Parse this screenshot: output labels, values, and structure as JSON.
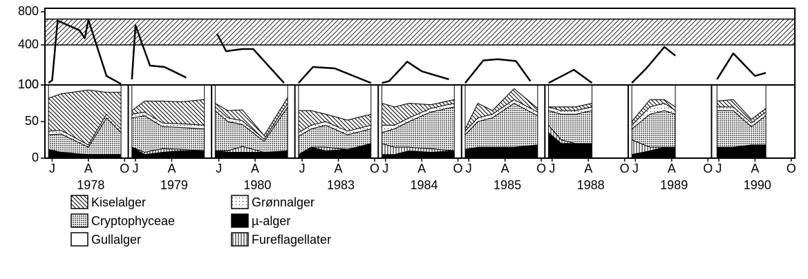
{
  "chart_data": [
    {
      "type": "line",
      "scale": "sqrt",
      "ylim": [
        100,
        850
      ],
      "yticks": [
        100,
        400,
        800
      ],
      "band": [
        400,
        700
      ],
      "xlim": [
        5.6,
        10.2
      ],
      "seasons": [
        {
          "x": [
            5.8,
            6.0,
            6.3,
            7.5,
            7.8,
            8.0,
            9.0,
            9.8
          ],
          "values": [
            110,
            125,
            680,
            560,
            470,
            690,
            150,
            105
          ]
        },
        {
          "x": [
            5.8,
            6.0,
            6.8,
            7.6,
            8.8
          ],
          "values": [
            130,
            620,
            220,
            210,
            140
          ]
        },
        {
          "x": [
            5.9,
            6.4,
            7.3,
            7.9,
            9.6
          ],
          "values": [
            520,
            340,
            360,
            360,
            110
          ]
        },
        {
          "x": [
            5.8,
            6.6,
            7.8,
            9.8
          ],
          "values": [
            110,
            210,
            200,
            110
          ]
        },
        {
          "x": [
            5.8,
            6.2,
            7.2,
            8.0,
            9.5
          ],
          "values": [
            110,
            120,
            250,
            180,
            130
          ]
        },
        {
          "x": [
            5.8,
            6.8,
            7.6,
            8.6,
            9.4
          ],
          "values": [
            110,
            260,
            270,
            255,
            120
          ]
        },
        {
          "x": [
            5.8,
            7.2,
            8.2
          ],
          "values": [
            110,
            190,
            110
          ]
        },
        {
          "x": [
            5.8,
            6.6,
            7.6,
            8.2
          ],
          "values": [
            110,
            200,
            380,
            300
          ]
        },
        {
          "x": [
            5.9,
            6.8,
            8.0,
            8.6
          ],
          "values": [
            130,
            320,
            150,
            170
          ]
        }
      ]
    },
    {
      "type": "stacked-area",
      "ylim": [
        0,
        100
      ],
      "yticks": [
        0,
        50,
        100
      ],
      "xlim": [
        5.6,
        10.2
      ],
      "series": [
        {
          "name": "µ-alger",
          "pattern": "solid"
        },
        {
          "name": "Fureflagellater",
          "pattern": "vertical"
        },
        {
          "name": "Cryptophyceae",
          "pattern": "dense-dots"
        },
        {
          "name": "Grønnalger",
          "pattern": "dots"
        },
        {
          "name": "Kiselalger",
          "pattern": "diagonal"
        },
        {
          "name": "Gullalger",
          "pattern": "none"
        }
      ],
      "seasons": [
        {
          "label": "1978",
          "xticks": [
            {
              "value": 6,
              "label": "J"
            },
            {
              "value": 8,
              "label": "A"
            },
            {
              "value": 10,
              "label": "O"
            }
          ],
          "x": [
            5.8,
            6.5,
            8.0,
            9.0,
            9.8
          ],
          "series": [
            {
              "values": [
                12,
                8,
                5,
                5,
                5
              ]
            },
            {
              "values": [
                0,
                0,
                0,
                0,
                0
              ]
            },
            {
              "values": [
                20,
                25,
                10,
                50,
                30
              ]
            },
            {
              "values": [
                5,
                5,
                3,
                5,
                5
              ]
            },
            {
              "values": [
                45,
                50,
                75,
                30,
                50
              ]
            },
            {
              "values": [
                18,
                12,
                7,
                10,
                10
              ]
            }
          ]
        },
        {
          "label": "1979",
          "xticks": [
            {
              "value": 6,
              "label": "J"
            },
            {
              "value": 8,
              "label": "A"
            }
          ],
          "x": [
            5.8,
            6.5,
            7.5,
            8.5,
            9.8
          ],
          "series": [
            {
              "values": [
                15,
                5,
                8,
                10,
                10
              ]
            },
            {
              "values": [
                0,
                3,
                5,
                2,
                0
              ]
            },
            {
              "values": [
                40,
                50,
                30,
                30,
                30
              ]
            },
            {
              "values": [
                5,
                5,
                5,
                5,
                5
              ]
            },
            {
              "values": [
                5,
                15,
                30,
                30,
                35
              ]
            },
            {
              "values": [
                35,
                22,
                22,
                23,
                20
              ]
            }
          ]
        },
        {
          "label": "1980",
          "xticks": [
            {
              "value": 6,
              "label": "J"
            },
            {
              "value": 8,
              "label": "A"
            }
          ],
          "x": [
            5.8,
            6.5,
            7.3,
            8.5,
            9.8
          ],
          "series": [
            {
              "values": [
                10,
                8,
                8,
                8,
                10
              ]
            },
            {
              "values": [
                0,
                2,
                8,
                0,
                0
              ]
            },
            {
              "values": [
                55,
                40,
                30,
                15,
                60
              ]
            },
            {
              "values": [
                5,
                5,
                5,
                3,
                5
              ]
            },
            {
              "values": [
                5,
                10,
                15,
                5,
                8
              ]
            },
            {
              "values": [
                25,
                35,
                34,
                69,
                17
              ]
            }
          ]
        },
        {
          "label": "1983",
          "xticks": [
            {
              "value": 6,
              "label": "J"
            },
            {
              "value": 8,
              "label": "A"
            },
            {
              "value": 10,
              "label": "O"
            }
          ],
          "x": [
            5.8,
            6.5,
            7.3,
            8.5,
            9.8
          ],
          "series": [
            {
              "values": [
                5,
                15,
                10,
                12,
                20
              ]
            },
            {
              "values": [
                0,
                0,
                5,
                0,
                0
              ]
            },
            {
              "values": [
                25,
                25,
                30,
                20,
                20
              ]
            },
            {
              "values": [
                5,
                5,
                5,
                5,
                5
              ]
            },
            {
              "values": [
                30,
                20,
                10,
                15,
                15
              ]
            },
            {
              "values": [
                35,
                35,
                40,
                48,
                40
              ]
            }
          ]
        },
        {
          "label": "1984",
          "xticks": [
            {
              "value": 6,
              "label": "J"
            },
            {
              "value": 8,
              "label": "A"
            },
            {
              "value": 10,
              "label": "O"
            }
          ],
          "x": [
            5.8,
            6.5,
            7.3,
            8.5,
            9.8
          ],
          "series": [
            {
              "values": [
                5,
                5,
                10,
                8,
                10
              ]
            },
            {
              "values": [
                15,
                10,
                5,
                5,
                0
              ]
            },
            {
              "values": [
                15,
                25,
                35,
                50,
                60
              ]
            },
            {
              "values": [
                10,
                5,
                5,
                5,
                5
              ]
            },
            {
              "values": [
                30,
                25,
                20,
                5,
                5
              ]
            },
            {
              "values": [
                25,
                30,
                25,
                27,
                20
              ]
            }
          ]
        },
        {
          "label": "1985",
          "xticks": [
            {
              "value": 6,
              "label": "J"
            },
            {
              "value": 8,
              "label": "A"
            },
            {
              "value": 10,
              "label": "O"
            }
          ],
          "x": [
            5.8,
            6.5,
            7.3,
            8.5,
            9.8
          ],
          "series": [
            {
              "values": [
                12,
                15,
                15,
                15,
                18
              ]
            },
            {
              "values": [
                0,
                0,
                0,
                0,
                0
              ]
            },
            {
              "values": [
                20,
                35,
                40,
                60,
                40
              ]
            },
            {
              "values": [
                5,
                5,
                5,
                5,
                5
              ]
            },
            {
              "values": [
                3,
                20,
                5,
                15,
                5
              ]
            },
            {
              "values": [
                60,
                25,
                35,
                5,
                32
              ]
            }
          ]
        },
        {
          "label": "1988",
          "xticks": [
            {
              "value": 6,
              "label": "J"
            },
            {
              "value": 8,
              "label": "A"
            },
            {
              "value": 10,
              "label": "O"
            }
          ],
          "x": [
            5.8,
            6.5,
            7.3,
            8.2
          ],
          "series": [
            {
              "values": [
                35,
                20,
                20,
                20
              ]
            },
            {
              "values": [
                10,
                5,
                0,
                0
              ]
            },
            {
              "values": [
                20,
                35,
                40,
                45
              ]
            },
            {
              "values": [
                5,
                5,
                5,
                5
              ]
            },
            {
              "values": [
                0,
                5,
                5,
                5
              ]
            },
            {
              "values": [
                30,
                30,
                30,
                25
              ]
            }
          ]
        },
        {
          "label": "1989",
          "xticks": [
            {
              "value": 6,
              "label": "J"
            },
            {
              "value": 8,
              "label": "A"
            },
            {
              "value": 10,
              "label": "O"
            }
          ],
          "x": [
            5.8,
            6.8,
            7.6,
            8.2
          ],
          "series": [
            {
              "values": [
                5,
                10,
                15,
                15
              ]
            },
            {
              "values": [
                20,
                5,
                0,
                0
              ]
            },
            {
              "values": [
                15,
                45,
                50,
                45
              ]
            },
            {
              "values": [
                5,
                10,
                10,
                5
              ]
            },
            {
              "values": [
                5,
                10,
                5,
                5
              ]
            },
            {
              "values": [
                50,
                20,
                20,
                30
              ]
            }
          ]
        },
        {
          "label": "1990",
          "xticks": [
            {
              "value": 6,
              "label": "J"
            },
            {
              "value": 8,
              "label": "A"
            },
            {
              "value": 10,
              "label": "O"
            }
          ],
          "x": [
            5.9,
            6.8,
            7.8,
            8.6
          ],
          "series": [
            {
              "values": [
                15,
                15,
                18,
                18
              ]
            },
            {
              "values": [
                0,
                0,
                0,
                0
              ]
            },
            {
              "values": [
                50,
                50,
                25,
                40
              ]
            },
            {
              "values": [
                5,
                5,
                5,
                5
              ]
            },
            {
              "values": [
                8,
                10,
                5,
                5
              ]
            },
            {
              "values": [
                22,
                20,
                47,
                32
              ]
            }
          ]
        }
      ]
    }
  ]
}
